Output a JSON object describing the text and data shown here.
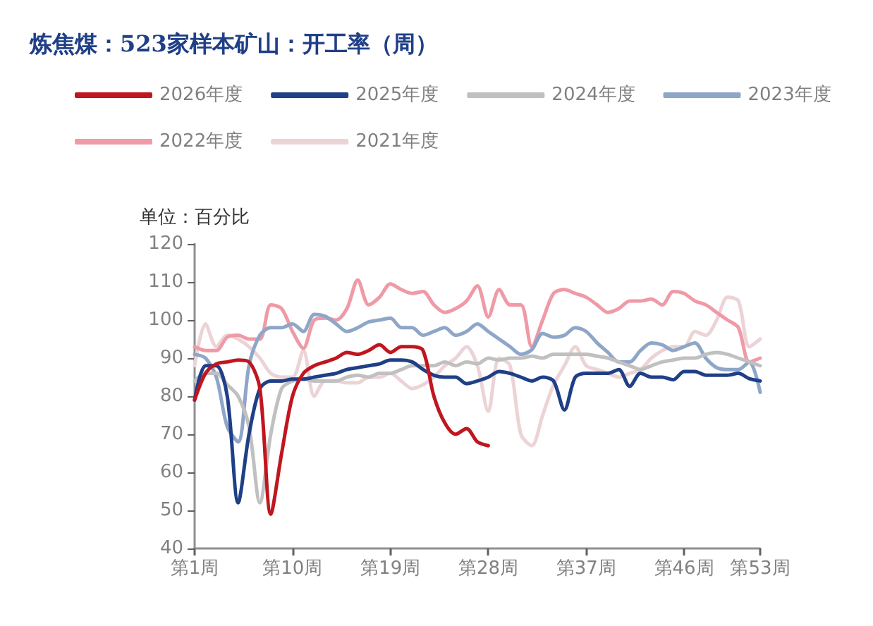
{
  "chart_data": {
    "type": "line",
    "title": "炼焦煤：523家样本矿山：开工率（周）",
    "ylabel": "单位：百分比",
    "categories": [
      "第1周",
      null,
      null,
      null,
      null,
      null,
      null,
      null,
      null,
      "第10周",
      null,
      null,
      null,
      null,
      null,
      null,
      null,
      null,
      "第19周",
      null,
      null,
      null,
      null,
      null,
      null,
      null,
      null,
      "第28周",
      null,
      null,
      null,
      null,
      null,
      null,
      null,
      null,
      "第37周",
      null,
      null,
      null,
      null,
      null,
      null,
      null,
      null,
      "第46周",
      null,
      null,
      null,
      null,
      null,
      null,
      "第53周"
    ],
    "ylim": [
      40,
      120
    ],
    "yticks": [
      40,
      50,
      60,
      70,
      80,
      90,
      100,
      110,
      120
    ],
    "grid": false,
    "legend": "top",
    "marker": "none",
    "line_style": "solid",
    "series": [
      {
        "name": "2026年度",
        "color": "#c0161f",
        "values": [
          79,
          86,
          88.5,
          89,
          89.5,
          89,
          82,
          49,
          65,
          80,
          86,
          88,
          89,
          90,
          91.5,
          91,
          92,
          93.5,
          91.5,
          93,
          93,
          92,
          80,
          73,
          70,
          71.5,
          68,
          67,
          null,
          null,
          null,
          null,
          null,
          null,
          null,
          null,
          null,
          null,
          null,
          null,
          null,
          null,
          null,
          null,
          null,
          null,
          null,
          null,
          null,
          null,
          null,
          null,
          null
        ]
      },
      {
        "name": "2025年度",
        "color": "#1f3f87",
        "values": [
          79,
          88,
          88,
          80,
          52,
          70,
          82,
          84,
          84,
          84.5,
          84.5,
          85,
          85.5,
          86,
          87,
          87.5,
          88,
          88.5,
          89.5,
          89.5,
          89,
          87,
          85.5,
          85,
          85,
          83.3,
          84,
          85,
          86.5,
          86,
          85,
          84,
          85,
          84,
          76.4,
          85,
          86,
          86,
          86,
          87,
          82.6,
          86,
          85,
          85,
          84.3,
          86.5,
          86.5,
          85.5,
          85.5,
          85.5,
          86,
          84.6,
          84
        ]
      },
      {
        "name": "2024年度",
        "color": "#c0c0c0",
        "values": [
          84,
          86,
          86,
          83,
          80,
          72,
          52,
          70,
          82,
          84,
          84.5,
          84,
          84,
          84,
          85,
          85.5,
          85,
          86,
          86,
          87,
          88,
          88,
          88,
          89,
          88,
          89,
          88.5,
          90,
          89.5,
          90,
          90,
          90.5,
          90,
          91,
          91,
          91,
          91,
          90.5,
          90,
          89,
          88,
          87,
          88,
          89,
          89.5,
          90,
          90,
          91,
          91.5,
          91,
          90,
          89,
          88
        ]
      },
      {
        "name": "2023年度",
        "color": "#8ea6c8",
        "values": [
          91,
          90,
          85,
          72,
          68,
          88,
          96,
          98,
          98,
          99,
          97,
          101.5,
          101,
          99,
          97,
          98,
          99.5,
          100,
          100.5,
          98,
          98,
          96,
          97,
          98,
          96,
          97,
          99,
          97,
          95,
          93,
          91,
          92.2,
          96.5,
          95.5,
          96,
          98,
          97,
          94,
          91.5,
          89,
          89,
          92,
          94,
          93.5,
          92,
          93,
          94,
          90,
          87.5,
          87,
          87,
          89,
          81
        ]
      },
      {
        "name": "2022年度",
        "color": "#ef9aa6",
        "values": [
          93,
          92,
          92,
          95.5,
          96,
          95,
          95,
          104,
          103,
          97,
          92.6,
          100,
          100.5,
          100,
          103,
          110.5,
          104,
          106,
          109.5,
          108,
          107,
          107.5,
          104,
          102,
          103,
          105,
          109,
          100.8,
          108,
          104,
          104,
          93,
          100,
          107,
          108,
          107,
          106,
          104,
          102,
          103,
          105,
          105,
          105.5,
          104,
          107.5,
          107,
          105,
          104,
          102,
          100,
          98,
          89,
          90
        ]
      },
      {
        "name": "2021年度",
        "color": "#ecd3d6",
        "values": [
          88,
          99,
          93,
          96,
          95,
          93,
          90,
          86,
          85,
          85,
          92,
          80,
          84,
          84,
          83.5,
          83.5,
          85,
          85,
          86,
          84,
          82,
          83,
          85,
          88,
          90,
          93,
          88,
          76,
          90,
          88,
          70,
          67,
          75,
          83,
          88,
          93,
          88,
          87,
          86,
          85,
          86,
          87,
          90,
          92,
          93,
          93,
          97,
          96,
          100,
          106,
          105,
          93,
          95
        ]
      }
    ]
  }
}
